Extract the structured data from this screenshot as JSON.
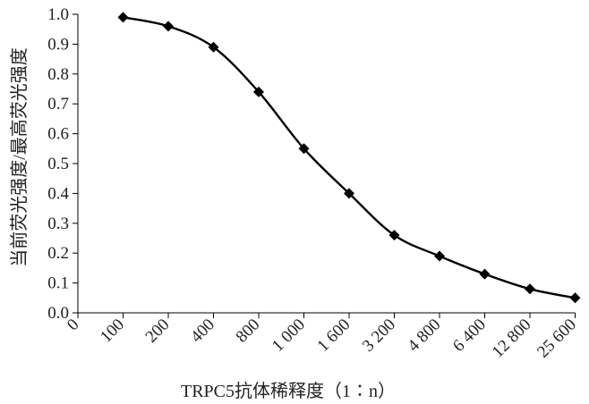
{
  "chart_data": {
    "type": "line",
    "title": "",
    "xlabel": "TRPC5抗体稀释度（1∶n）",
    "ylabel": "当前荧光强度/最高荧光强度",
    "categories": [
      "0",
      "100",
      "200",
      "400",
      "800",
      "1 000",
      "1 600",
      "3 200",
      "4 800",
      "6 400",
      "12 800",
      "25 600"
    ],
    "ylim": [
      0,
      1.0
    ],
    "yticks": [
      "0.0",
      "0.1",
      "0.2",
      "0.3",
      "0.4",
      "0.5",
      "0.6",
      "0.7",
      "0.8",
      "0.9",
      "1.0"
    ],
    "series": [
      {
        "x": [
          "100",
          "200",
          "400",
          "800",
          "1 000",
          "1 600",
          "3 200",
          "4 800",
          "6 400",
          "12 800",
          "25 600"
        ],
        "values": [
          0.99,
          0.96,
          0.89,
          0.74,
          0.55,
          0.4,
          0.26,
          0.19,
          0.13,
          0.08,
          0.05
        ],
        "marker": "diamond",
        "color": "#000000",
        "smooth": true
      }
    ],
    "grid": false,
    "legend": "none"
  }
}
